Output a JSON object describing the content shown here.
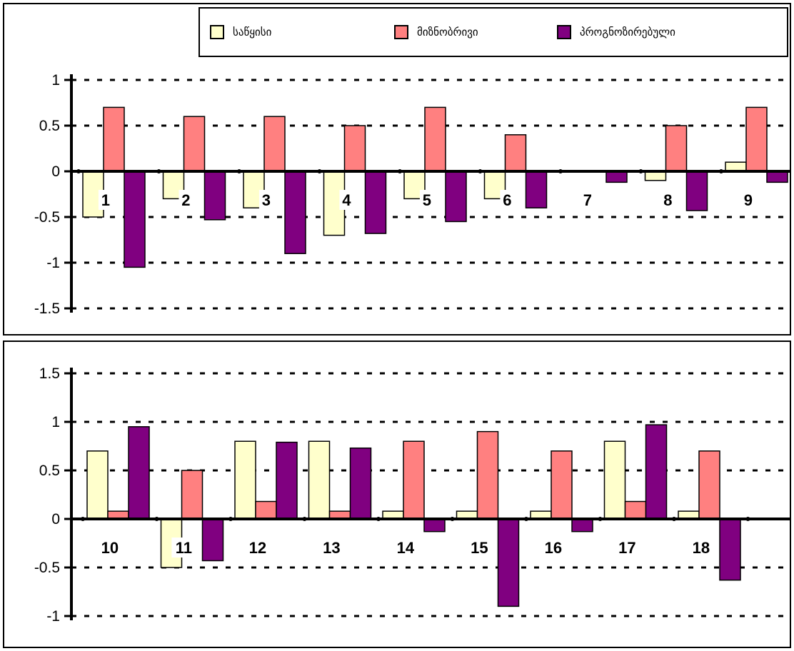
{
  "colors": {
    "initial": "#FFFFCC",
    "optimal": "#FF8080",
    "forecast": "#800080"
  },
  "legend": {
    "items": [
      {
        "label": "საწყისი",
        "color": "#FFFFCC"
      },
      {
        "label": "მიზნობრივი",
        "color": "#FF8080"
      },
      {
        "label": "პროგნოზირებული",
        "color": "#800080"
      }
    ]
  },
  "chart_data": [
    {
      "type": "bar",
      "categories": [
        "1",
        "2",
        "3",
        "4",
        "5",
        "6",
        "7",
        "8",
        "9"
      ],
      "series": [
        {
          "name": "საწყისი",
          "values": [
            -0.5,
            -0.3,
            -0.4,
            -0.7,
            -0.3,
            -0.3,
            0,
            -0.1,
            0.1
          ]
        },
        {
          "name": "მიზნობრივი",
          "values": [
            0.7,
            0.6,
            0.6,
            0.5,
            0.7,
            0.4,
            0,
            0.5,
            0.7
          ]
        },
        {
          "name": "პროგნოზირებული",
          "values": [
            -1.05,
            -0.53,
            -0.9,
            -0.68,
            -0.55,
            -0.4,
            -0.12,
            -0.43,
            -0.12
          ]
        }
      ],
      "yticks": [
        "1",
        "0.5",
        "0",
        "-0.5",
        "-1",
        "-1.5"
      ],
      "ylim": [
        -1.5,
        1
      ],
      "grid": true,
      "legend_position": "top-right"
    },
    {
      "type": "bar",
      "categories": [
        "10",
        "11",
        "12",
        "13",
        "14",
        "15",
        "16",
        "17",
        "18"
      ],
      "series": [
        {
          "name": "საწყისი",
          "values": [
            0.7,
            -0.5,
            0.8,
            0.8,
            0.08,
            0.08,
            0.08,
            0.8,
            0.08
          ]
        },
        {
          "name": "მიზნობრივი",
          "values": [
            0.08,
            0.5,
            0.18,
            0.08,
            0.8,
            0.9,
            0.7,
            0.18,
            0.7
          ]
        },
        {
          "name": "პროგნოზირებული",
          "values": [
            0.95,
            -0.43,
            0.79,
            0.73,
            -0.13,
            -0.9,
            -0.13,
            0.97,
            -0.63
          ]
        }
      ],
      "yticks": [
        "1.5",
        "1",
        "0.5",
        "0",
        "-0.5",
        "-1"
      ],
      "ylim": [
        -1,
        1.5
      ],
      "grid": true
    }
  ]
}
